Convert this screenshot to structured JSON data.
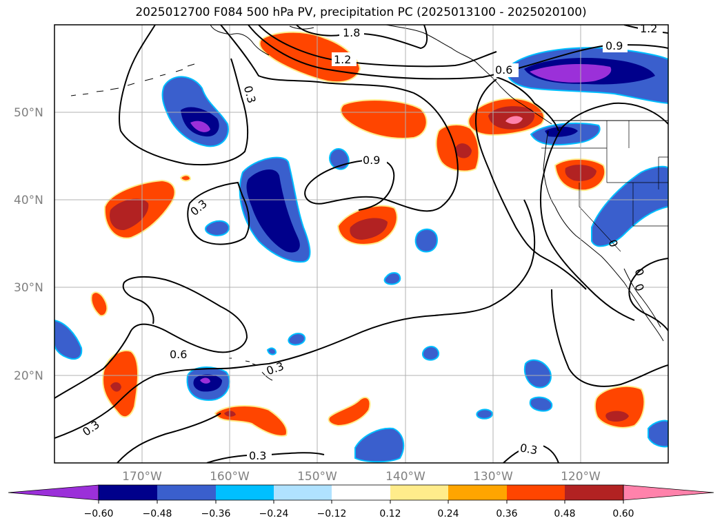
{
  "title": "2025012700 F084 500 hPa PV, precipitation PC (2025013100 - 2025020100)",
  "map": {
    "lon_range": [
      -180,
      -110
    ],
    "lat_range": [
      10,
      60
    ],
    "lat_ticks": [
      "50°N",
      "40°N",
      "30°N",
      "20°N"
    ],
    "lon_ticks": [
      "170°W",
      "160°W",
      "150°W",
      "140°W",
      "130°W",
      "120°W"
    ],
    "contour_labels": [
      "1.8",
      "1.2",
      "1.2",
      "0.9",
      "0.6",
      "0.3",
      "0.9",
      "0.3",
      "0.6",
      "0.3",
      "0.3",
      "0.3",
      "0.3",
      "0",
      "0",
      "0"
    ]
  },
  "colorbar": {
    "ticks": [
      "−0.60",
      "−0.48",
      "−0.36",
      "−0.24",
      "−0.12",
      "0.12",
      "0.24",
      "0.36",
      "0.48",
      "0.60"
    ],
    "colors": [
      "#9b30d9",
      "#00008b",
      "#3a5fcd",
      "#00bfff",
      "#b0e2ff",
      "#ffffff",
      "#ffec8b",
      "#ffa500",
      "#ff4500",
      "#b22222",
      "#ff82ab"
    ]
  }
}
